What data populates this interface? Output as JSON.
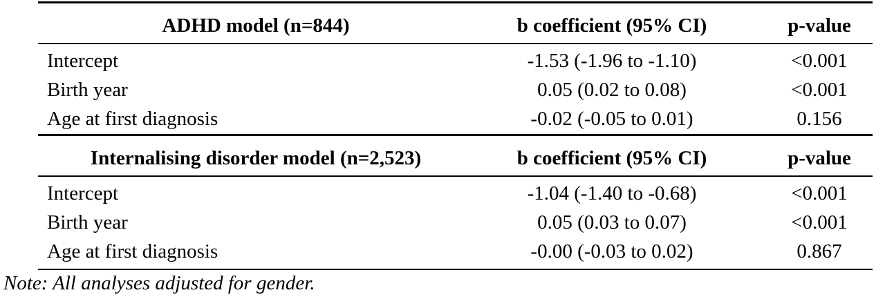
{
  "table": {
    "sections": [
      {
        "header": [
          "ADHD model (n=844)",
          "b coefficient (95% CI)",
          "p-value"
        ],
        "rows": [
          [
            "Intercept",
            "-1.53 (-1.96 to -1.10)",
            "<0.001"
          ],
          [
            "Birth year",
            "0.05 (0.02 to 0.08)",
            "<0.001"
          ],
          [
            "Age at first diagnosis",
            "-0.02 (-0.05 to 0.01)",
            "0.156"
          ]
        ]
      },
      {
        "header": [
          "Internalising disorder model (n=2,523)",
          "b coefficient (95% CI)",
          "p-value"
        ],
        "rows": [
          [
            "Intercept",
            "-1.04 (-1.40 to -0.68)",
            "<0.001"
          ],
          [
            "Birth year",
            "0.05 (0.03 to 0.07)",
            "<0.001"
          ],
          [
            "Age at first diagnosis",
            "-0.00 (-0.03 to 0.02)",
            "0.867"
          ]
        ]
      }
    ],
    "note": "Note: All analyses adjusted for gender."
  }
}
